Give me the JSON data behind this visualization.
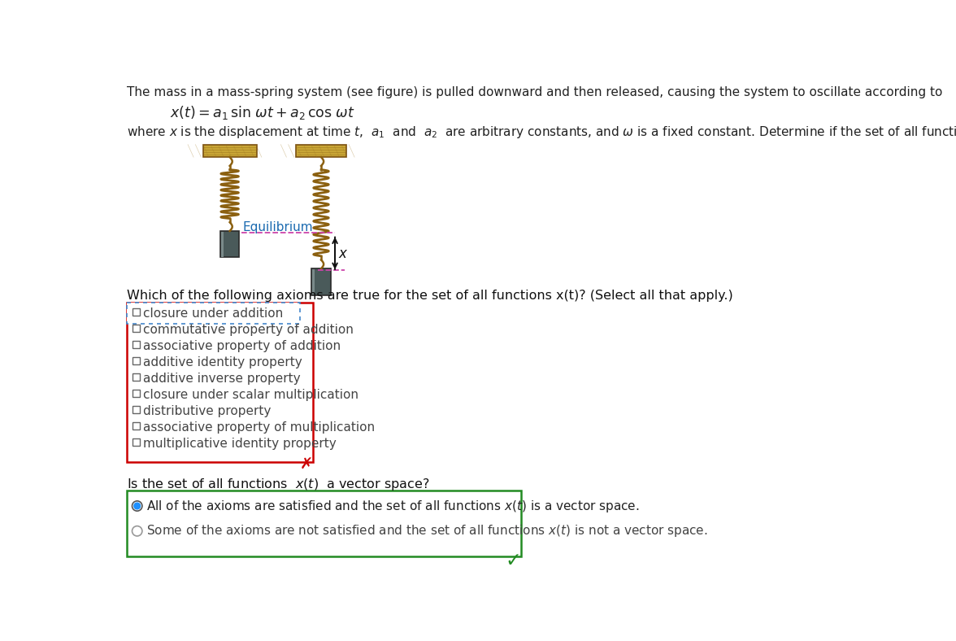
{
  "bg_color": "#ffffff",
  "title_text": "The mass in a mass-spring system (see figure) is pulled downward and then released, causing the system to oscillate according to",
  "equation_plain": "x(t) = a₁ sin ωt + a₂ cos ωt",
  "description": "where x is the displacement at time t,  a₁  and  a₂  are arbitrary constants, and ω is a fixed constant. Determine if the set of all functions  x(t)  is a vector space.",
  "question": "Which of the following axioms are true for the set of all functions x(t)? (Select all that apply.)",
  "axioms": [
    "closure under addition",
    "commutative property of addition",
    "associative property of addition",
    "additive identity property",
    "additive inverse property",
    "closure under scalar multiplication",
    "distributive property",
    "associative property of multiplication",
    "multiplicative identity property"
  ],
  "final_question_pre": "Is the set of all functions  ",
  "final_question_post": "  a vector space?",
  "answer1": "All of the axioms are satisfied and the set of all functions x(t) is a vector space.",
  "answer2": "Some of the axioms are not satisfied and the set of all functions x(t) is not a vector space.",
  "text_color": "#333333",
  "red_color": "#cc0000",
  "green_color": "#228B22",
  "blue_color": "#1e90ff",
  "spring_color": "#8B6010",
  "wood_color_main": "#c8a535",
  "wood_color_edge": "#7a5010",
  "mass_color": "#505050",
  "eq_dash_color": "#cc44aa"
}
